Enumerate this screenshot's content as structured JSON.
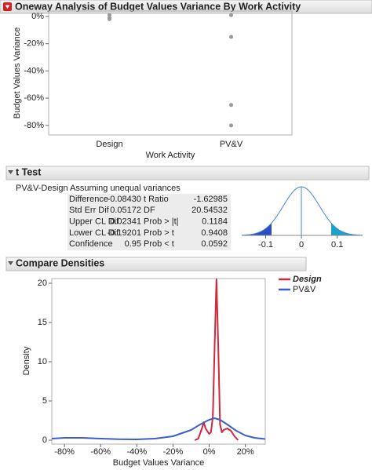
{
  "chart_data": [
    {
      "type": "strip",
      "title": "Oneway Analysis of Budget Values Variance By Work Activity",
      "y_label": "Budget Values Variance",
      "x_label": "Work Activity",
      "groups": [
        {
          "category": "Design",
          "values": [
            1,
            -1,
            -2
          ]
        },
        {
          "category": "PV&V",
          "values": [
            1,
            -15,
            -65,
            -80
          ]
        }
      ],
      "color": "#999999",
      "ylim": [
        -87,
        4
      ],
      "yticks": [
        {
          "value": 0,
          "label": "0%"
        },
        {
          "value": -20,
          "label": "-20%"
        },
        {
          "value": -40,
          "label": "-40%"
        },
        {
          "value": -60,
          "label": "-60%"
        },
        {
          "value": -80,
          "label": "-80%"
        }
      ]
    },
    {
      "type": "t_plot",
      "xlim": [
        -0.167,
        0.171
      ],
      "xticks": [
        -0.1,
        0,
        0.1
      ]
    },
    {
      "type": "line",
      "title": "Compare Densities",
      "x_label": "Budget Values Variance",
      "y_label": "Density",
      "series": [
        {
          "name": "Design",
          "color": "#d0283c",
          "x": [
            -8,
            -6,
            -4,
            -3,
            -2,
            0,
            1,
            2,
            3,
            4,
            5,
            6,
            7,
            8,
            10,
            12,
            14,
            16
          ],
          "values": [
            0,
            0.2,
            1.5,
            2.3,
            1.5,
            0.8,
            1,
            3,
            12,
            20.5,
            12,
            2,
            1,
            1.3,
            1.5,
            1.2,
            0.5,
            0
          ]
        },
        {
          "name": "PV&V",
          "color": "#3a5fcd",
          "x": [
            -87,
            -80,
            -70,
            -60,
            -50,
            -40,
            -30,
            -20,
            -10,
            -5,
            0,
            3,
            6,
            10,
            15,
            20,
            25,
            31
          ],
          "values": [
            0.2,
            0.3,
            0.3,
            0.2,
            0.12,
            0.1,
            0.2,
            0.5,
            1.3,
            2,
            2.6,
            2.8,
            2.6,
            2,
            1.2,
            0.6,
            0.3,
            0.15
          ]
        }
      ],
      "xlim": [
        -87,
        31
      ],
      "ylim": [
        -0.5,
        20.6
      ],
      "xticks": [
        {
          "value": -80,
          "label": "-80%"
        },
        {
          "value": -60,
          "label": "-60%"
        },
        {
          "value": -40,
          "label": "-40%"
        },
        {
          "value": -20,
          "label": "-20%"
        },
        {
          "value": 0,
          "label": "0%"
        },
        {
          "value": 20,
          "label": "20%"
        }
      ],
      "yticks": [
        0,
        5,
        10,
        15,
        20
      ]
    }
  ],
  "t_test": {
    "title": "t Test",
    "subtitle": "PV&V-Design Assuming unequal variances",
    "rows": [
      [
        "Difference",
        "-0.08430",
        "t Ratio",
        "-1.62985"
      ],
      [
        "Std Err Dif",
        "0.05172",
        "DF",
        "20.54532"
      ],
      [
        "Upper CL Dif",
        "0.02341",
        "Prob > |t|",
        "0.1184"
      ],
      [
        "Lower CL Dif",
        "-0.19201",
        "Prob > t",
        "0.9408"
      ],
      [
        "Confidence",
        "0.95",
        "Prob < t",
        "0.0592"
      ]
    ]
  }
}
